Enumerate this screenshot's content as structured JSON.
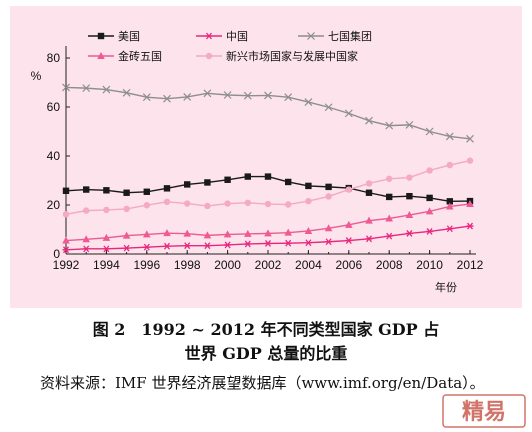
{
  "chart_data": {
    "type": "line",
    "ylabel": "%",
    "xlabel": "年份",
    "ylim": [
      0,
      80
    ],
    "yticks": [
      0,
      20,
      40,
      60,
      80
    ],
    "xlim": [
      1992,
      2012
    ],
    "xticks": [
      1992,
      1994,
      1996,
      1998,
      2000,
      2002,
      2004,
      2006,
      2008,
      2010,
      2012
    ],
    "legend": "top",
    "x": [
      1992,
      1993,
      1994,
      1995,
      1996,
      1997,
      1998,
      1999,
      2000,
      2001,
      2002,
      2003,
      2004,
      2005,
      2006,
      2007,
      2008,
      2009,
      2010,
      2011,
      2012
    ],
    "series": [
      {
        "name": "美国",
        "color": "#1a1a1a",
        "marker": "square",
        "values": [
          25.8,
          26.3,
          26.0,
          25.0,
          25.4,
          26.8,
          28.4,
          29.2,
          30.3,
          31.6,
          31.6,
          29.4,
          27.8,
          27.4,
          26.9,
          25.0,
          23.3,
          23.6,
          22.9,
          21.5,
          21.6
        ]
      },
      {
        "name": "中国",
        "color": "#e8287e",
        "marker": "asterisk",
        "values": [
          1.7,
          2.1,
          2.1,
          2.4,
          2.8,
          3.2,
          3.4,
          3.4,
          3.7,
          4.1,
          4.3,
          4.4,
          4.6,
          5.0,
          5.5,
          6.2,
          7.3,
          8.4,
          9.2,
          10.3,
          11.4
        ]
      },
      {
        "name": "七国集团",
        "color": "#8e8e8e",
        "marker": "x",
        "values": [
          68.0,
          67.7,
          67.1,
          65.8,
          64.0,
          63.4,
          64.1,
          65.6,
          64.9,
          64.6,
          64.7,
          64.0,
          62.0,
          59.9,
          57.4,
          54.4,
          52.4,
          52.7,
          50.0,
          48.0,
          47.0
        ]
      },
      {
        "name": "金砖五国",
        "color": "#ef5a92",
        "marker": "triangle",
        "values": [
          5.5,
          6.0,
          6.6,
          7.5,
          8.0,
          8.5,
          8.3,
          7.6,
          8.0,
          8.2,
          8.4,
          8.7,
          9.4,
          10.5,
          11.9,
          13.6,
          14.5,
          15.9,
          17.4,
          19.4,
          20.4
        ]
      },
      {
        "name": "新兴市场国家与发展中国家",
        "color": "#f4a9c5",
        "marker": "circle",
        "values": [
          16.2,
          17.7,
          18.0,
          18.4,
          19.9,
          21.3,
          20.6,
          19.6,
          20.6,
          20.9,
          20.4,
          20.2,
          21.6,
          23.5,
          26.3,
          28.8,
          30.7,
          31.2,
          34.1,
          36.3,
          38.1
        ]
      }
    ]
  },
  "caption": {
    "line1": "图 2　1992 ~ 2012 年不同类型国家 GDP 占",
    "line2": "世界 GDP 总量的比重"
  },
  "source": "资料来源：IMF 世界经济展望数据库（www.imf.org/en/Data）。",
  "seal": {
    "text": "精易",
    "color": "#c0392b"
  }
}
